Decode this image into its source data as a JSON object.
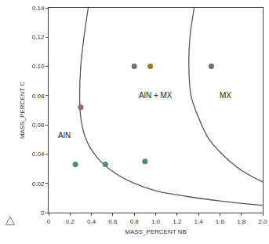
{
  "chart_data": {
    "type": "scatter",
    "x_label": "MASS_PERCENT NB",
    "y_label": "MASS_PERCENT C",
    "xlim": [
      0,
      2.0
    ],
    "ylim": [
      0,
      0.14
    ],
    "xticks": [
      0,
      0.2,
      0.4,
      0.6,
      0.8,
      {
        "value": 1.0,
        "label": "1.0"
      },
      1.2,
      1.4,
      1.6,
      1.8,
      {
        "value": 2.0,
        "label": "2.0"
      }
    ],
    "yticks": [
      0,
      0.02,
      0.04,
      0.06,
      0.08,
      {
        "value": 0.1,
        "label": "0.10"
      },
      0.12,
      0.14
    ],
    "grid": false,
    "series": [
      {
        "type": "line",
        "color": "#555555",
        "x": [
          0.37,
          0.33,
          0.3,
          0.29,
          0.3,
          0.35,
          0.45,
          0.6,
          0.8,
          1.0,
          1.3,
          1.6,
          2.0
        ],
        "values": [
          0.14,
          0.12,
          0.1,
          0.08,
          0.065,
          0.05,
          0.038,
          0.028,
          0.02,
          0.015,
          0.011,
          0.008,
          0.005
        ]
      },
      {
        "type": "line",
        "color": "#555555",
        "x": [
          1.36,
          1.32,
          1.31,
          1.33,
          1.4,
          1.5,
          1.65,
          1.8,
          2.0
        ],
        "values": [
          0.14,
          0.12,
          0.1,
          0.08,
          0.065,
          0.05,
          0.038,
          0.029,
          0.021
        ]
      },
      {
        "type": "scatter",
        "marker": "circle",
        "x": [
          0.3,
          0.8,
          0.95,
          1.52,
          0.25,
          0.53,
          0.9
        ],
        "values": [
          0.072,
          0.1,
          0.1,
          0.1,
          0.033,
          0.033,
          0.035
        ],
        "colors": [
          "#8a6a78",
          "#707070",
          "#9a7a2a",
          "#707070",
          "#4a8a78",
          "#4a8a78",
          "#4a8a78"
        ]
      }
    ],
    "annotations": [
      {
        "text": "AlN",
        "x": 0.15,
        "y": 0.053
      },
      {
        "text": "AlN + MX",
        "x": 1.0,
        "y": 0.08
      },
      {
        "text": "MX",
        "x": 1.65,
        "y": 0.08
      }
    ]
  }
}
